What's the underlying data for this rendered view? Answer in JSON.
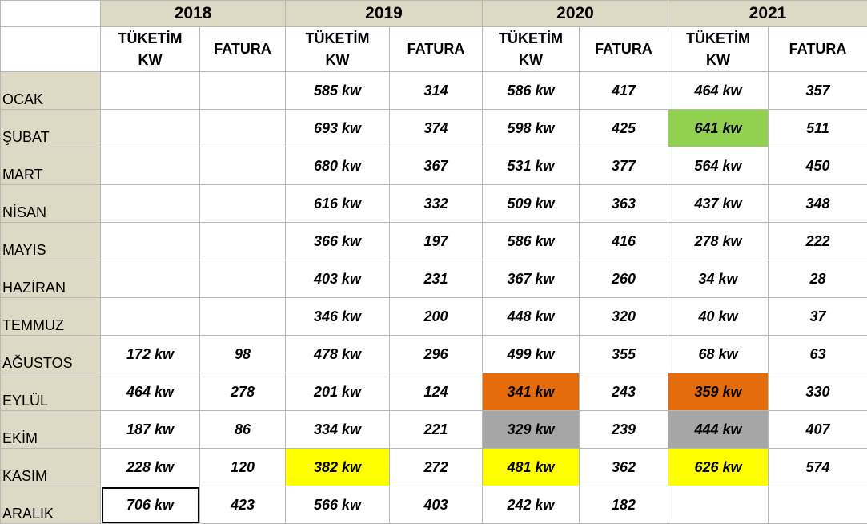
{
  "table": {
    "years": [
      "2018",
      "2019",
      "2020",
      "2021"
    ],
    "columns": [
      "TÜKETİM KW",
      "FATURA",
      "TÜKETİM KW",
      "FATURA",
      "TÜKETİM KW",
      "FATURA",
      "TÜKETİM KW",
      "FATURA"
    ],
    "rows": [
      {
        "month": "OCAK",
        "cells": [
          null,
          null,
          "585 kw",
          "314",
          "586 kw",
          "417",
          "464 kw",
          "357"
        ]
      },
      {
        "month": "ŞUBAT",
        "cells": [
          null,
          null,
          "693 kw",
          "374",
          "598 kw",
          "425",
          "641 kw",
          "511"
        ]
      },
      {
        "month": "MART",
        "cells": [
          null,
          null,
          "680 kw",
          "367",
          "531 kw",
          "377",
          "564 kw",
          "450"
        ]
      },
      {
        "month": "NİSAN",
        "cells": [
          null,
          null,
          "616 kw",
          "332",
          "509 kw",
          "363",
          "437 kw",
          "348"
        ]
      },
      {
        "month": "MAYIS",
        "cells": [
          null,
          null,
          "366 kw",
          "197",
          "586 kw",
          "416",
          "278 kw",
          "222"
        ]
      },
      {
        "month": "HAZİRAN",
        "cells": [
          null,
          null,
          "403 kw",
          "231",
          "367 kw",
          "260",
          "34 kw",
          "28"
        ]
      },
      {
        "month": "TEMMUZ",
        "cells": [
          null,
          null,
          "346 kw",
          "200",
          "448 kw",
          "320",
          "40 kw",
          "37"
        ]
      },
      {
        "month": "AĞUSTOS",
        "cells": [
          "172 kw",
          "98",
          "478 kw",
          "296",
          "499 kw",
          "355",
          "68 kw",
          "63"
        ]
      },
      {
        "month": "EYLÜL",
        "cells": [
          "464 kw",
          "278",
          "201 kw",
          "124",
          "341 kw",
          "243",
          "359 kw",
          "330"
        ]
      },
      {
        "month": "EKİM",
        "cells": [
          "187 kw",
          "86",
          "334 kw",
          "221",
          "329 kw",
          "239",
          "444 kw",
          "407"
        ]
      },
      {
        "month": "KASIM",
        "cells": [
          "228 kw",
          "120",
          "382 kw",
          "272",
          "481 kw",
          "362",
          "626 kw",
          "574"
        ]
      },
      {
        "month": "ARALIK",
        "cells": [
          "706 kw",
          "423",
          "566 kw",
          "403",
          "242 kw",
          "182",
          null,
          null
        ]
      }
    ]
  }
}
